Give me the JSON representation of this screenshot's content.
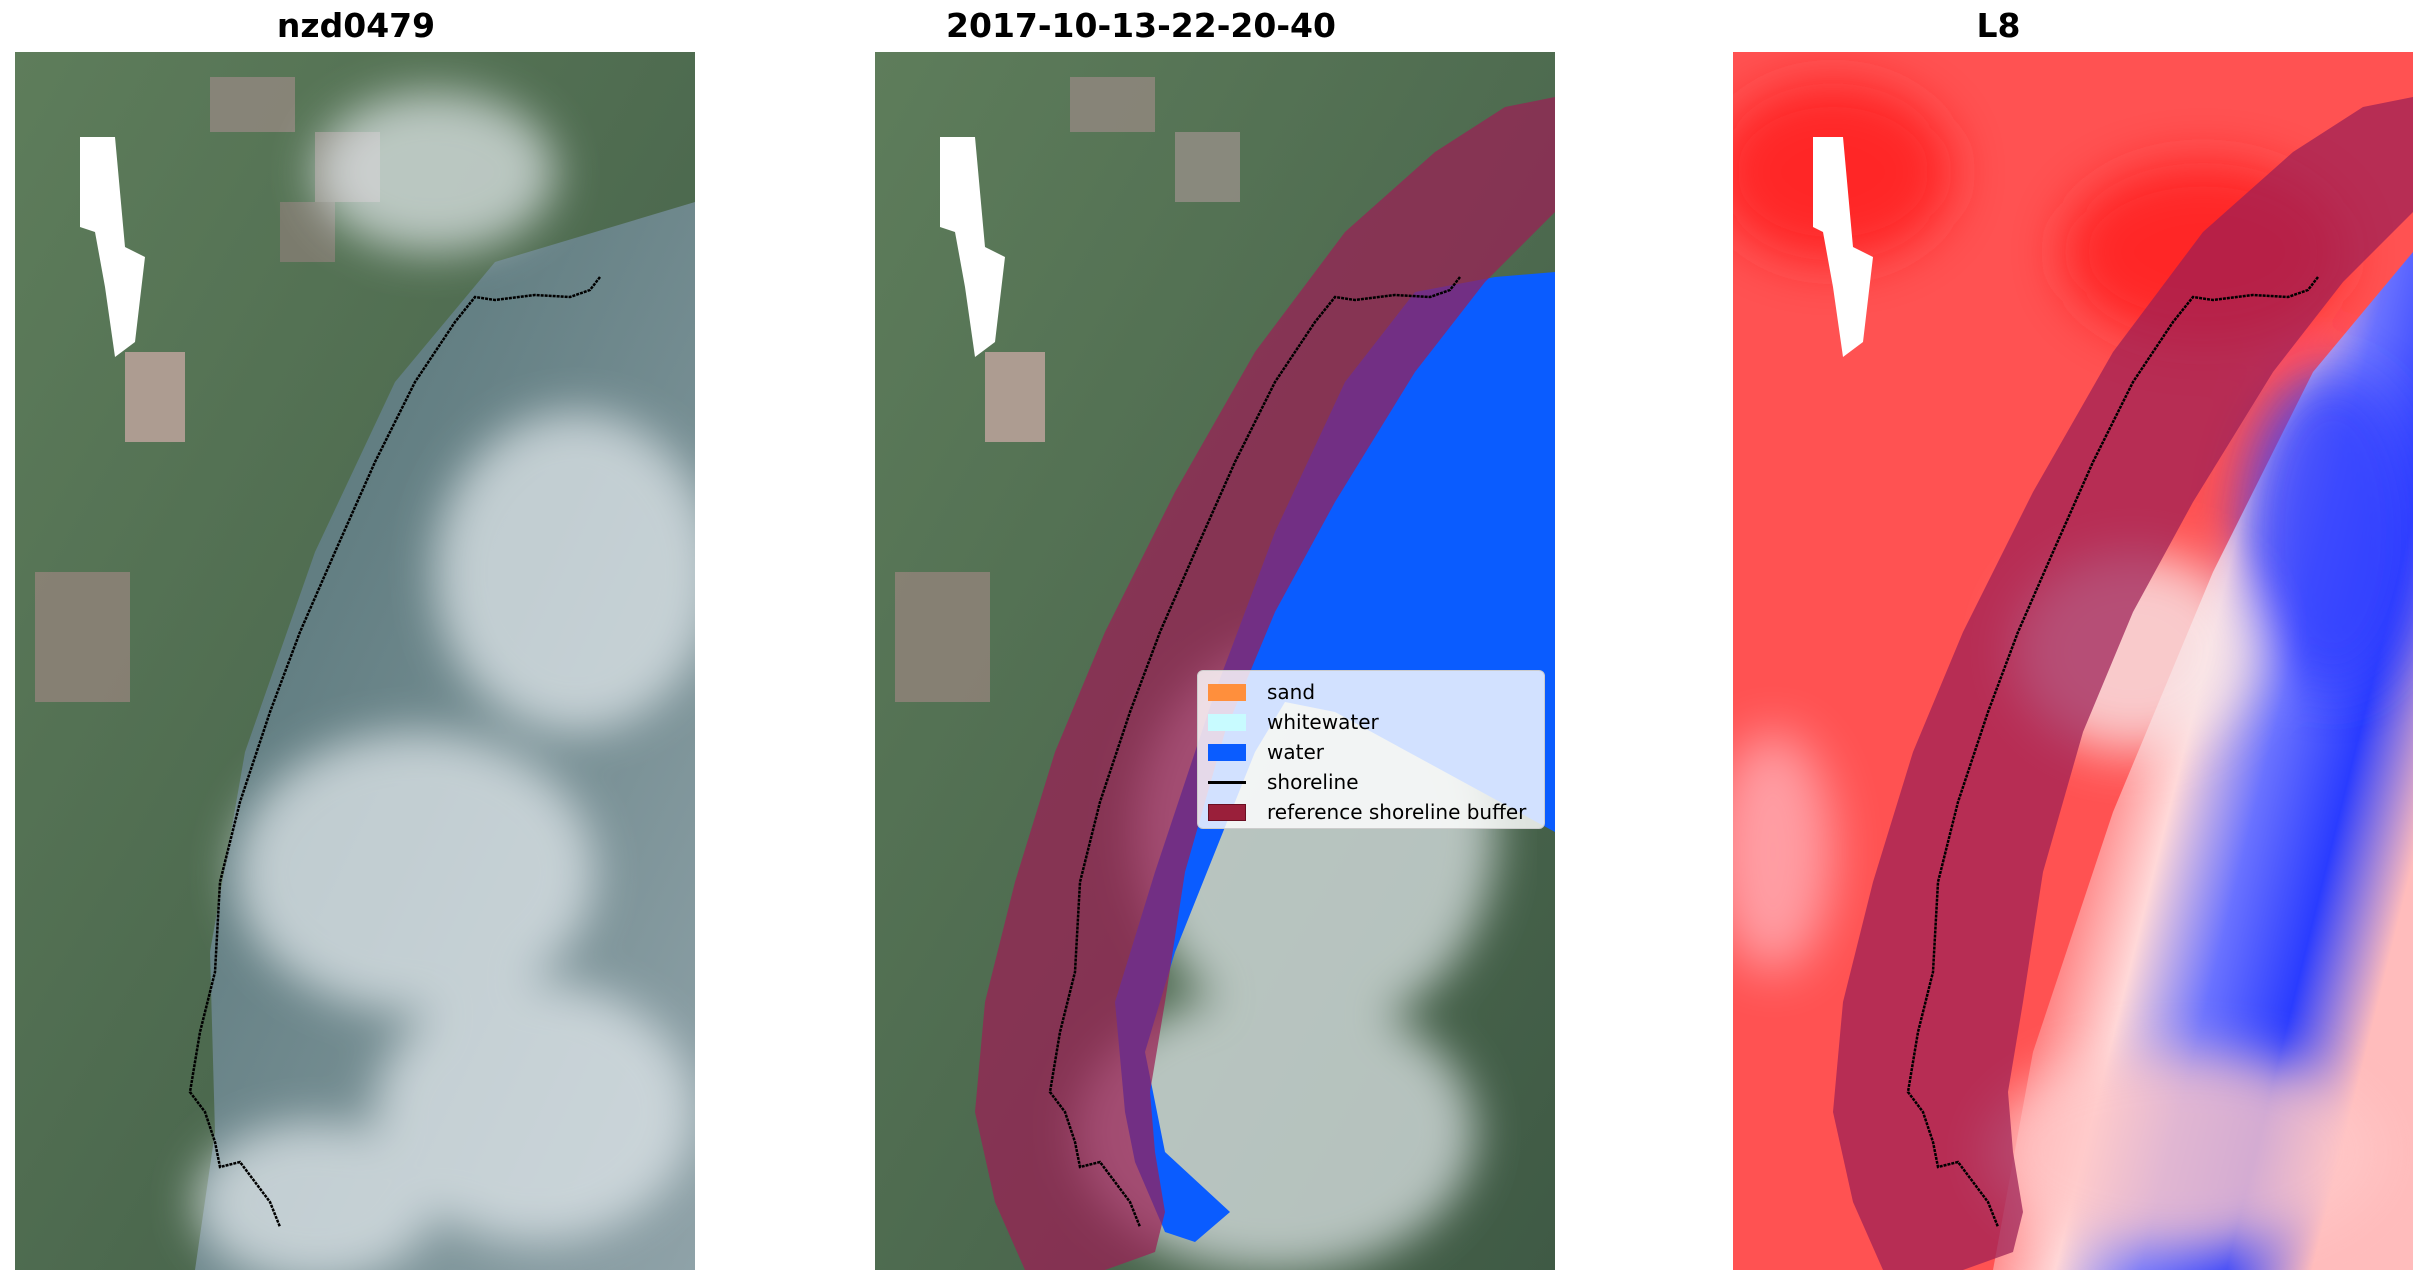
{
  "panels": [
    {
      "title": "nzd0479"
    },
    {
      "title": "2017-10-13-22-20-40"
    },
    {
      "title": "L8"
    }
  ],
  "legend": {
    "items": [
      {
        "label": "sand",
        "color": "#ff8f3c",
        "kind": "patch"
      },
      {
        "label": "whitewater",
        "color": "#c8fbff",
        "kind": "patch"
      },
      {
        "label": "water",
        "color": "#0a5cff",
        "kind": "patch"
      },
      {
        "label": "shoreline",
        "color": "#000000",
        "kind": "line"
      },
      {
        "label": "reference shoreline buffer",
        "color": "#9a1f3a",
        "kind": "patch"
      }
    ]
  },
  "colors": {
    "buffer": "#9b1e55",
    "water": "#0a5cff",
    "land": "#5d7b58",
    "cloud": "#c8d3dc",
    "index_positive": "#ff2a2a",
    "index_negative": "#2a3cff"
  }
}
